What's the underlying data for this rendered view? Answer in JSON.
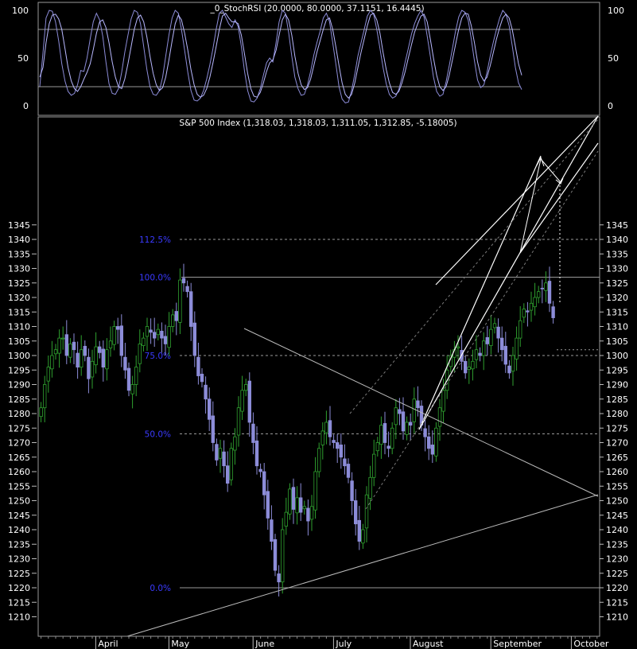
{
  "chart_data": [
    {
      "type": "line",
      "title": "_0_StochRSI (20.0000, 80.0000, 37.1151, 16.4445)",
      "ylim": [
        0,
        100
      ],
      "yticks": [
        0,
        50,
        100
      ],
      "reference_lines": [
        20,
        80
      ],
      "series": [
        {
          "color": "#8c8cd8",
          "values": [
            20,
            55,
            92,
            100,
            99,
            88,
            68,
            44,
            26,
            15,
            11,
            13,
            22,
            37,
            36,
            50,
            70,
            88,
            97,
            90,
            73,
            46,
            23,
            13,
            12,
            18,
            35,
            56,
            74,
            91,
            100,
            98,
            86,
            62,
            38,
            20,
            12,
            11,
            16,
            30,
            52,
            74,
            92,
            100,
            97,
            80,
            58,
            35,
            16,
            6,
            5,
            8,
            16,
            28,
            43,
            60,
            80,
            97,
            100,
            93,
            86,
            82,
            90,
            83,
            62,
            36,
            16,
            5,
            4,
            8,
            18,
            32,
            45,
            50,
            46,
            66,
            88,
            100,
            97,
            77,
            52,
            30,
            18,
            11,
            12,
            22,
            36,
            53,
            66,
            78,
            92,
            97,
            88,
            66,
            44,
            20,
            7,
            3,
            4,
            16,
            33,
            52,
            66,
            80,
            94,
            100,
            96,
            80,
            60,
            40,
            23,
            12,
            8,
            10,
            17,
            30,
            46,
            60,
            75,
            86,
            94,
            100,
            93,
            73,
            52,
            30,
            15,
            10,
            12,
            25,
            42,
            60,
            78,
            93,
            100,
            98,
            90,
            70,
            47,
            27,
            19,
            22,
            35,
            52,
            67,
            80,
            92,
            100,
            96,
            84,
            63,
            40,
            24,
            17
          ]
        },
        {
          "color": "#b8b8ff",
          "values": [
            30,
            40,
            66,
            86,
            95,
            96,
            91,
            80,
            60,
            40,
            26,
            18,
            15,
            20,
            28,
            35,
            44,
            59,
            76,
            88,
            90,
            82,
            66,
            46,
            30,
            20,
            18,
            28,
            44,
            62,
            80,
            92,
            95,
            88,
            72,
            52,
            34,
            22,
            16,
            19,
            30,
            48,
            68,
            86,
            95,
            90,
            76,
            58,
            38,
            22,
            12,
            9,
            11,
            18,
            30,
            45,
            62,
            80,
            94,
            97,
            92,
            88,
            88,
            86,
            74,
            54,
            34,
            18,
            10,
            9,
            14,
            24,
            36,
            45,
            48,
            58,
            74,
            90,
            96,
            90,
            74,
            52,
            34,
            22,
            17,
            19,
            28,
            42,
            56,
            68,
            80,
            90,
            92,
            80,
            62,
            42,
            24,
            12,
            8,
            12,
            24,
            40,
            56,
            70,
            84,
            95,
            97,
            90,
            76,
            56,
            38,
            24,
            14,
            12,
            15,
            24,
            36,
            50,
            64,
            77,
            86,
            94,
            96,
            88,
            70,
            50,
            32,
            20,
            16,
            20,
            32,
            48,
            64,
            80,
            92,
            97,
            96,
            84,
            66,
            46,
            32,
            26,
            30,
            42,
            56,
            70,
            82,
            92,
            96,
            92,
            80,
            62,
            44,
            32
          ]
        }
      ]
    },
    {
      "type": "candlestick",
      "title": "S&P 500 Index (1,318.03, 1,318.03, 1,311.05, 1,312.85, -5.18005)",
      "ylim": [
        1205,
        1348
      ],
      "yticks": [
        1210,
        1215,
        1220,
        1225,
        1230,
        1235,
        1240,
        1245,
        1250,
        1255,
        1260,
        1265,
        1270,
        1275,
        1280,
        1285,
        1290,
        1295,
        1300,
        1305,
        1310,
        1315,
        1320,
        1325,
        1330,
        1335,
        1340,
        1345
      ],
      "x_month_labels": [
        {
          "label": "April",
          "index": 18
        },
        {
          "label": "May",
          "index": 38
        },
        {
          "label": "June",
          "index": 61
        },
        {
          "label": "July",
          "index": 83
        },
        {
          "label": "August",
          "index": 104
        },
        {
          "label": "September",
          "index": 126
        },
        {
          "label": "October",
          "index": 148
        }
      ],
      "up_color": "#2fa02f",
      "down_color": "#8c8cd8",
      "closes": [
        1282,
        1290,
        1296,
        1300,
        1302,
        1306,
        1306,
        1300,
        1304,
        1302,
        1296,
        1302,
        1300,
        1292,
        1298,
        1303,
        1301,
        1296,
        1302,
        1305,
        1310,
        1309,
        1300,
        1295,
        1288,
        1290,
        1296,
        1304,
        1306,
        1310,
        1308,
        1306,
        1309,
        1306,
        1304,
        1310,
        1314,
        1312,
        1326,
        1325,
        1322,
        1310,
        1300,
        1293,
        1291,
        1285,
        1278,
        1270,
        1264,
        1268,
        1262,
        1256,
        1268,
        1272,
        1282,
        1288,
        1290,
        1277,
        1270,
        1262,
        1260,
        1252,
        1244,
        1236,
        1226,
        1222,
        1240,
        1246,
        1254,
        1247,
        1251,
        1246,
        1248,
        1243,
        1248,
        1260,
        1268,
        1274,
        1277,
        1272,
        1270,
        1268,
        1265,
        1262,
        1258,
        1250,
        1242,
        1236,
        1240,
        1252,
        1258,
        1266,
        1270,
        1276,
        1270,
        1268,
        1275,
        1282,
        1280,
        1274,
        1277,
        1276,
        1285,
        1282,
        1276,
        1272,
        1268,
        1266,
        1275,
        1282,
        1288,
        1295,
        1300,
        1302,
        1303,
        1298,
        1294,
        1296,
        1298,
        1302,
        1300,
        1305,
        1304,
        1309,
        1311,
        1306,
        1302,
        1297,
        1294,
        1300,
        1306,
        1312,
        1316,
        1315,
        1318,
        1320,
        1322,
        1323,
        1325,
        1318,
        1313
      ],
      "fib_levels": [
        {
          "label": "112.5%",
          "value": 1340
        },
        {
          "label": "100.0%",
          "value": 1327
        },
        {
          "label": "75.0%",
          "value": 1300
        },
        {
          "label": "50.0%",
          "value": 1273
        },
        {
          "label": "0.0%",
          "value": 1220
        }
      ],
      "annotations": [
        {
          "label": "dotted projection mark",
          "value": 1302
        }
      ]
    }
  ]
}
